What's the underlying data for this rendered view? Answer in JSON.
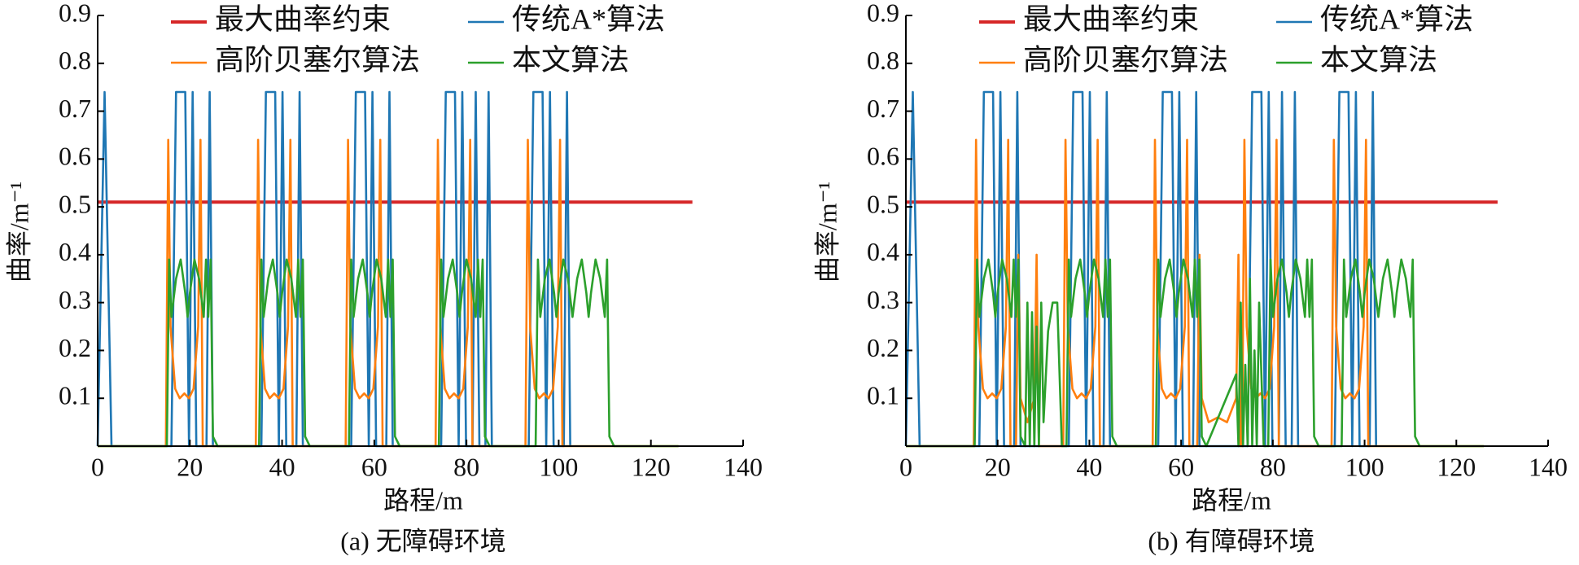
{
  "chart_data": [
    {
      "type": "line",
      "xlabel": "路程/m",
      "ylabel": "曲率/m⁻¹",
      "caption": "(a) 无障碍环境",
      "xlim": [
        0,
        140
      ],
      "ylim": [
        0,
        0.9
      ],
      "xticks": [
        0,
        20,
        40,
        60,
        80,
        100,
        120,
        140
      ],
      "yticks": [
        0.1,
        0.2,
        0.3,
        0.4,
        0.5,
        0.6,
        0.7,
        0.8,
        0.9
      ],
      "series": [
        {
          "name": "最大曲率约束",
          "color": "#d62728",
          "x": [
            0,
            129
          ],
          "values": [
            0.51,
            0.51
          ]
        },
        {
          "name": "传统A*算法",
          "color": "#1f77b4",
          "x": [
            0,
            1.5,
            3,
            16,
            17,
            19,
            19.8,
            20.6,
            21.4,
            23.6,
            24.3,
            25,
            35.5,
            36.5,
            38.5,
            39.3,
            40.1,
            40.9,
            43.1,
            43.8,
            44.5,
            55,
            56,
            58,
            58.8,
            59.6,
            60.4,
            62.6,
            63.3,
            64,
            74.5,
            75.5,
            77.5,
            78.3,
            79.1,
            79.9,
            81.3,
            82,
            82.8,
            84.1,
            84.8,
            85.5,
            93.5,
            94.5,
            96.5,
            97.3,
            98.1,
            98.9,
            101.1,
            101.8,
            102.5
          ],
          "values": [
            0,
            0.74,
            0,
            0,
            0.74,
            0.74,
            0,
            0.74,
            0,
            0,
            0.74,
            0,
            0,
            0.74,
            0.74,
            0,
            0.74,
            0,
            0,
            0.74,
            0,
            0,
            0.74,
            0.74,
            0,
            0.74,
            0,
            0,
            0.74,
            0,
            0,
            0.74,
            0.74,
            0,
            0.74,
            0,
            0,
            0.74,
            0,
            0,
            0.74,
            0,
            0,
            0.74,
            0.74,
            0,
            0.74,
            0,
            0,
            0.74,
            0
          ]
        },
        {
          "name": "高阶贝塞尔算法",
          "color": "#ff7f0e",
          "x": [
            0,
            14.8,
            15.3,
            15.8,
            16.8,
            17.8,
            18.8,
            19.8,
            20.8,
            21.8,
            22.3,
            22.8,
            34.3,
            34.8,
            35.3,
            36.3,
            37.3,
            38.3,
            39.3,
            40.3,
            41.3,
            41.8,
            42.3,
            53.8,
            54.3,
            54.8,
            55.8,
            56.8,
            57.8,
            58.8,
            59.8,
            60.8,
            61.3,
            61.8,
            73.3,
            73.8,
            74.3,
            75.3,
            76.3,
            77.3,
            78.3,
            79.3,
            80.3,
            80.8,
            81.3,
            92.8,
            93.3,
            93.8,
            94.8,
            95.8,
            96.8,
            97.8,
            98.8,
            99.8,
            100.3,
            100.8,
            126
          ],
          "values": [
            0,
            0,
            0.64,
            0.25,
            0.12,
            0.1,
            0.11,
            0.1,
            0.12,
            0.25,
            0.64,
            0,
            0,
            0.64,
            0.25,
            0.12,
            0.1,
            0.11,
            0.1,
            0.12,
            0.25,
            0.64,
            0,
            0,
            0.64,
            0.25,
            0.12,
            0.1,
            0.11,
            0.1,
            0.12,
            0.25,
            0.64,
            0,
            0,
            0.64,
            0.25,
            0.12,
            0.1,
            0.11,
            0.1,
            0.12,
            0.25,
            0.64,
            0,
            0,
            0.64,
            0.25,
            0.12,
            0.1,
            0.11,
            0.1,
            0.12,
            0.25,
            0.64,
            0,
            0
          ]
        },
        {
          "name": "本文算法",
          "color": "#2ca02c",
          "x": [
            0,
            15,
            15.5,
            16,
            17,
            18,
            19,
            19.5,
            20,
            21,
            22,
            23,
            23.5,
            24,
            24.5,
            25,
            26,
            35,
            35.5,
            36,
            37,
            38,
            39,
            39.5,
            40,
            41,
            42,
            43,
            43.5,
            44,
            44.5,
            45,
            46,
            54.5,
            55,
            55.5,
            56.5,
            57.5,
            58.5,
            59,
            59.5,
            60.5,
            61.5,
            62.5,
            63,
            63.5,
            64,
            64.5,
            65.5,
            74,
            74.5,
            75,
            76,
            77,
            78,
            78.5,
            79,
            80,
            81,
            82,
            82.5,
            83,
            83.5,
            84,
            85,
            95,
            95.5,
            96,
            97,
            98,
            99,
            99.5,
            100,
            101,
            102,
            103,
            104,
            105,
            106,
            106.5,
            107,
            108,
            109,
            110,
            110.5,
            111,
            112,
            126
          ],
          "values": [
            0,
            0,
            0.39,
            0.27,
            0.35,
            0.39,
            0.32,
            0.27,
            0.32,
            0.39,
            0.35,
            0.27,
            0.39,
            0.27,
            0.39,
            0.02,
            0,
            0,
            0.39,
            0.27,
            0.35,
            0.39,
            0.32,
            0.27,
            0.32,
            0.39,
            0.35,
            0.27,
            0.39,
            0.27,
            0.39,
            0.02,
            0,
            0,
            0.39,
            0.27,
            0.35,
            0.39,
            0.32,
            0.27,
            0.32,
            0.39,
            0.35,
            0.27,
            0.39,
            0.27,
            0.39,
            0.02,
            0,
            0,
            0.39,
            0.27,
            0.35,
            0.39,
            0.32,
            0.27,
            0.32,
            0.39,
            0.35,
            0.27,
            0.39,
            0.27,
            0.39,
            0.02,
            0,
            0,
            0.39,
            0.27,
            0.35,
            0.39,
            0.32,
            0.27,
            0.32,
            0.39,
            0.35,
            0.27,
            0.35,
            0.39,
            0.32,
            0.27,
            0.32,
            0.39,
            0.35,
            0.27,
            0.39,
            0.02,
            0,
            0
          ]
        }
      ]
    },
    {
      "type": "line",
      "xlabel": "路程/m",
      "ylabel": "曲率/m⁻¹",
      "caption": "(b) 有障碍环境",
      "xlim": [
        0,
        140
      ],
      "ylim": [
        0,
        0.9
      ],
      "xticks": [
        0,
        20,
        40,
        60,
        80,
        100,
        120,
        140
      ],
      "yticks": [
        0.1,
        0.2,
        0.3,
        0.4,
        0.5,
        0.6,
        0.7,
        0.8,
        0.9
      ],
      "series": [
        {
          "name": "最大曲率约束",
          "color": "#d62728",
          "x": [
            0,
            129
          ],
          "values": [
            0.51,
            0.51
          ]
        },
        {
          "name": "传统A*算法",
          "color": "#1f77b4",
          "x": [
            0,
            1.5,
            3,
            16,
            17,
            19,
            19.8,
            20.6,
            21.4,
            23.6,
            24.3,
            25,
            35.5,
            36.5,
            38.5,
            39.3,
            40.1,
            40.9,
            43.1,
            43.8,
            44.5,
            55,
            56,
            58,
            58.8,
            59.6,
            60.4,
            62.6,
            63.3,
            64,
            74.5,
            75.5,
            77.5,
            78.3,
            79.1,
            79.9,
            81.3,
            82,
            82.8,
            84.1,
            84.8,
            85.5,
            93.5,
            94.5,
            96.5,
            97.3,
            98.1,
            98.9,
            101.1,
            101.8,
            102.5
          ],
          "values": [
            0,
            0.74,
            0,
            0,
            0.74,
            0.74,
            0,
            0.74,
            0,
            0,
            0.74,
            0,
            0,
            0.74,
            0.74,
            0,
            0.74,
            0,
            0,
            0.74,
            0,
            0,
            0.74,
            0.74,
            0,
            0.74,
            0,
            0,
            0.74,
            0,
            0,
            0.74,
            0.74,
            0,
            0.74,
            0,
            0,
            0.74,
            0,
            0,
            0.74,
            0,
            0,
            0.74,
            0.74,
            0,
            0.74,
            0,
            0,
            0.74,
            0
          ]
        },
        {
          "name": "高阶贝塞尔算法",
          "color": "#ff7f0e",
          "x": [
            0,
            14.8,
            15.3,
            15.8,
            16.8,
            17.8,
            18.8,
            19.8,
            20.8,
            21.8,
            22.3,
            22.8,
            24,
            24.5,
            25,
            26.5,
            28,
            28.5,
            29,
            34.3,
            34.8,
            35.3,
            36.3,
            37.3,
            38.3,
            39.3,
            40.3,
            41.3,
            41.8,
            42.3,
            53.8,
            54.3,
            54.8,
            55.8,
            56.8,
            57.8,
            58.8,
            59.8,
            60.8,
            61.3,
            61.8,
            63.5,
            64,
            64.5,
            66,
            68,
            70,
            72,
            72.5,
            73,
            73.3,
            73.8,
            74.3,
            75.3,
            76.3,
            77.3,
            78.3,
            79.3,
            80.3,
            80.8,
            81.3,
            92.8,
            93.3,
            93.8,
            94.8,
            95.8,
            96.8,
            97.8,
            98.8,
            99.8,
            100.3,
            100.8,
            126
          ],
          "values": [
            0,
            0,
            0.64,
            0.25,
            0.12,
            0.1,
            0.11,
            0.1,
            0.12,
            0.25,
            0.64,
            0,
            0,
            0.4,
            0.1,
            0.05,
            0.1,
            0.4,
            0,
            0,
            0.64,
            0.25,
            0.12,
            0.1,
            0.11,
            0.1,
            0.12,
            0.25,
            0.64,
            0,
            0,
            0.64,
            0.25,
            0.12,
            0.1,
            0.11,
            0.1,
            0.12,
            0.25,
            0.64,
            0,
            0,
            0.4,
            0.1,
            0.05,
            0.06,
            0.05,
            0.1,
            0.4,
            0,
            0,
            0.64,
            0.25,
            0.12,
            0.1,
            0.11,
            0.1,
            0.12,
            0.25,
            0.64,
            0,
            0,
            0.64,
            0.25,
            0.12,
            0.1,
            0.11,
            0.1,
            0.12,
            0.25,
            0.64,
            0,
            0
          ]
        },
        {
          "name": "本文算法",
          "color": "#2ca02c",
          "x": [
            0,
            15,
            15.5,
            16,
            17,
            18,
            19,
            19.5,
            20,
            21,
            22,
            23,
            23.5,
            24,
            24.5,
            25,
            26,
            26.5,
            27,
            27.5,
            28,
            28.5,
            29,
            29.5,
            30,
            31,
            32,
            33,
            34,
            35,
            35.5,
            36,
            37,
            38,
            39,
            39.5,
            40,
            41,
            42,
            43,
            43.5,
            44,
            44.5,
            45,
            46,
            54.5,
            55,
            55.5,
            56.5,
            57.5,
            58.5,
            59,
            59.5,
            60.5,
            61.5,
            62.5,
            63,
            63.5,
            64,
            64.5,
            65.5,
            72,
            72.5,
            73,
            73.5,
            74,
            74.5,
            75,
            75.5,
            76,
            76.5,
            77,
            78,
            79,
            79.5,
            80,
            81,
            82,
            83,
            83.5,
            84,
            85,
            86,
            87,
            87.5,
            88,
            88.5,
            89,
            90,
            95,
            95.5,
            96,
            97,
            98,
            99,
            99.5,
            100,
            101,
            102,
            103,
            104,
            105,
            106,
            106.5,
            107,
            108,
            109,
            110,
            110.5,
            111,
            112,
            126
          ],
          "values": [
            0,
            0,
            0.39,
            0.27,
            0.35,
            0.39,
            0.32,
            0.27,
            0.32,
            0.39,
            0.35,
            0.27,
            0.39,
            0.27,
            0.39,
            0.02,
            0,
            0.3,
            0,
            0.28,
            0,
            0.25,
            0,
            0.3,
            0.05,
            0.24,
            0.3,
            0.3,
            0,
            0,
            0.39,
            0.27,
            0.35,
            0.39,
            0.32,
            0.27,
            0.32,
            0.39,
            0.35,
            0.27,
            0.39,
            0.27,
            0.39,
            0.02,
            0,
            0,
            0.39,
            0.27,
            0.35,
            0.39,
            0.32,
            0.27,
            0.32,
            0.39,
            0.35,
            0.27,
            0.39,
            0.27,
            0.39,
            0.02,
            0,
            0.15,
            0,
            0.3,
            0,
            0.17,
            0,
            0.35,
            0,
            0.2,
            0,
            0.3,
            0,
            0,
            0.39,
            0.27,
            0.35,
            0.39,
            0.32,
            0.27,
            0.32,
            0.39,
            0.35,
            0.27,
            0.39,
            0.27,
            0.39,
            0.02,
            0,
            0,
            0.39,
            0.27,
            0.35,
            0.39,
            0.32,
            0.27,
            0.32,
            0.39,
            0.35,
            0.27,
            0.35,
            0.39,
            0.32,
            0.27,
            0.32,
            0.39,
            0.35,
            0.27,
            0.39,
            0.02,
            0,
            0
          ]
        }
      ]
    }
  ]
}
